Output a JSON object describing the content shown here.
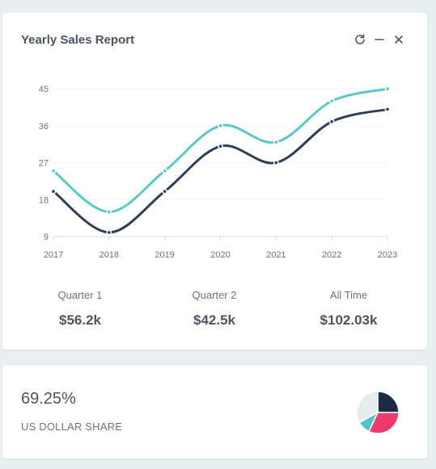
{
  "sales_card": {
    "title": "Yearly Sales Report",
    "tool_icons": [
      "refresh-icon",
      "minimize-icon",
      "close-icon"
    ]
  },
  "chart_data": {
    "type": "line",
    "categories": [
      "2017",
      "2018",
      "2019",
      "2020",
      "2021",
      "2022",
      "2023"
    ],
    "y_ticks": [
      9,
      18,
      27,
      36,
      45
    ],
    "ylim": [
      9,
      45
    ],
    "grid": true,
    "series": [
      {
        "values": [
          25,
          15,
          25,
          36,
          32,
          42,
          45
        ],
        "color": "#5ac8c8"
      },
      {
        "values": [
          20,
          10,
          20,
          31,
          27,
          37,
          40
        ],
        "color": "#2f3e58"
      }
    ]
  },
  "stats": [
    {
      "label": "Quarter 1",
      "value": "$56.2k"
    },
    {
      "label": "Quarter 2",
      "value": "$42.5k"
    },
    {
      "label": "All Time",
      "value": "$102.03k"
    }
  ],
  "share_card": {
    "value": "69.25%",
    "label": "US DOLLAR SHARE",
    "pie": [
      {
        "value": 25,
        "color": "#1e2a44"
      },
      {
        "value": 32,
        "color": "#ef3a6d"
      },
      {
        "value": 10,
        "color": "#4fc3c4"
      },
      {
        "value": 33,
        "color": "#e6ebec"
      }
    ]
  }
}
